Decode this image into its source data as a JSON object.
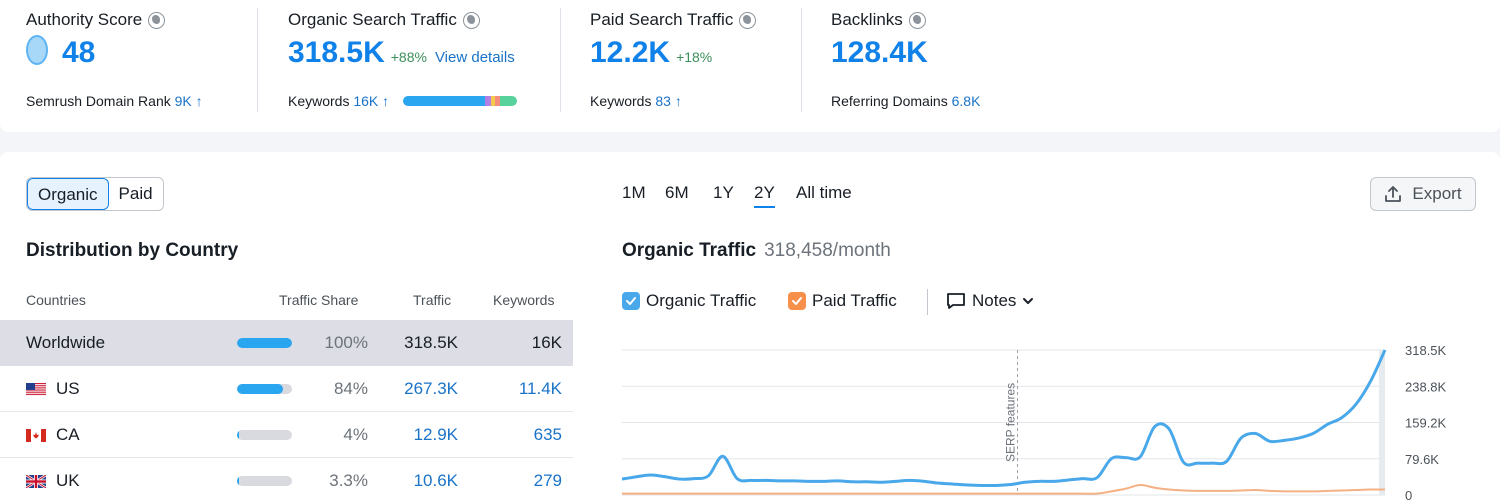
{
  "colors": {
    "accent": "#1081e8",
    "organic": "#49a8ea",
    "paid": "#f5b183",
    "positive": "#3b8f5a"
  },
  "metrics": {
    "authority": {
      "title": "Authority Score",
      "value": "48",
      "sub_label": "Semrush Domain Rank",
      "sub_value": "9K",
      "sub_arrow": "↑",
      "icon": "globe-icon"
    },
    "organic": {
      "title": "Organic Search Traffic",
      "value": "318.5K",
      "delta": "+88%",
      "link": "View details",
      "sub_label": "Keywords",
      "sub_value": "16K",
      "sub_arrow": "↑",
      "icon": "globe-icon"
    },
    "paid": {
      "title": "Paid Search Traffic",
      "value": "12.2K",
      "delta": "+18%",
      "sub_label": "Keywords",
      "sub_value": "83",
      "sub_arrow": "↑",
      "icon": "globe-icon"
    },
    "backlinks": {
      "title": "Backlinks",
      "value": "128.4K",
      "sub_label": "Referring Domains",
      "sub_value": "6.8K",
      "icon": "globe-icon"
    }
  },
  "keyword_bar": [
    {
      "share": 0.72,
      "color": "#2aa5f0"
    },
    {
      "share": 0.05,
      "color": "#b27fe4"
    },
    {
      "share": 0.04,
      "color": "#f2c94c"
    },
    {
      "share": 0.04,
      "color": "#f58f7c"
    },
    {
      "share": 0.15,
      "color": "#58d29d"
    }
  ],
  "toggle": {
    "organic": "Organic",
    "paid": "Paid"
  },
  "distribution": {
    "title": "Distribution by Country",
    "headers": {
      "countries": "Countries",
      "share": "Traffic Share",
      "traffic": "Traffic",
      "keywords": "Keywords"
    },
    "rows": [
      {
        "country": "Worldwide",
        "share_label": "100%",
        "share": 1.0,
        "traffic": "318.5K",
        "keywords": "16K",
        "flag": ""
      },
      {
        "country": "US",
        "share_label": "84%",
        "share": 0.84,
        "traffic": "267.3K",
        "keywords": "11.4K",
        "flag": "us-flag-icon"
      },
      {
        "country": "CA",
        "share_label": "4%",
        "share": 0.04,
        "traffic": "12.9K",
        "keywords": "635",
        "flag": "ca-flag-icon"
      },
      {
        "country": "UK",
        "share_label": "3.3%",
        "share": 0.033,
        "traffic": "10.6K",
        "keywords": "279",
        "flag": "uk-flag-icon"
      }
    ]
  },
  "ranges": [
    "1M",
    "6M",
    "1Y",
    "2Y",
    "All time"
  ],
  "active_range": "2Y",
  "export_label": "Export",
  "chart_header": {
    "title": "Organic Traffic",
    "subtitle": "318,458/month"
  },
  "legend": {
    "organic": "Organic Traffic",
    "paid": "Paid Traffic",
    "notes": "Notes"
  },
  "chart_data": {
    "type": "line",
    "y_tick_labels": [
      "318.5K",
      "238.8K",
      "159.2K",
      "79.6K",
      "0"
    ],
    "ylim": [
      0,
      318458
    ],
    "annotation": "SERP features",
    "annotation_index": 24,
    "series": [
      {
        "key": "organic",
        "values": [
          35000,
          40000,
          44000,
          40000,
          35000,
          36000,
          42000,
          85000,
          36000,
          32000,
          32000,
          31000,
          31000,
          30000,
          30000,
          31000,
          29000,
          29000,
          28000,
          30000,
          32000,
          30000,
          26000,
          24000,
          22000,
          21000,
          21000,
          23000,
          28000,
          30000,
          30000,
          33000,
          36000,
          38000,
          80000,
          82000,
          84000,
          150000,
          145000,
          72000,
          70000,
          70000,
          74000,
          125000,
          135000,
          118000,
          120000,
          125000,
          135000,
          155000,
          170000,
          200000,
          250000,
          318458
        ]
      },
      {
        "key": "paid",
        "values": [
          3000,
          3000,
          3000,
          3000,
          3000,
          3000,
          3000,
          3000,
          3000,
          3000,
          3000,
          3000,
          3000,
          3000,
          3000,
          3000,
          3000,
          3000,
          3000,
          3000,
          3000,
          3000,
          3000,
          3000,
          3000,
          3000,
          3000,
          3000,
          3000,
          3000,
          3000,
          3000,
          3000,
          3000,
          8000,
          14000,
          22000,
          16000,
          12000,
          10000,
          9000,
          9000,
          9000,
          10000,
          11000,
          9000,
          8000,
          8000,
          8000,
          9000,
          10000,
          11000,
          12000,
          12200
        ]
      }
    ]
  }
}
